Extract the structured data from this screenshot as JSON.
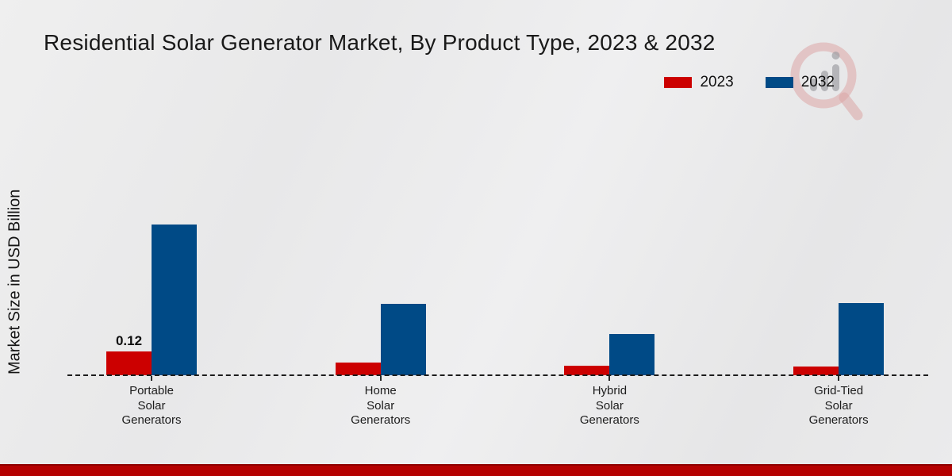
{
  "page": {
    "background_color": "#eaeaeb",
    "footer_bar_color": "#b50101",
    "watermark_icon": "magnifier-bar-chart-watermark"
  },
  "chart_data": {
    "type": "bar",
    "title": "Residential Solar Generator Market, By Product Type, 2023 & 2032",
    "xlabel": "",
    "ylabel": "Market Size in USD Billion",
    "unit": "USD Billion",
    "grid": false,
    "legend_position": "top-right",
    "baseline_style": "dashed-zero-line",
    "y_ticks_visible": false,
    "ylim": [
      0,
      0.8
    ],
    "categories": [
      "Portable Solar Generators",
      "Home Solar Generators",
      "Hybrid Solar Generators",
      "Grid-Tied Solar Generators"
    ],
    "category_lines": [
      [
        "Portable",
        "Solar",
        "Generators"
      ],
      [
        "Home",
        "Solar",
        "Generators"
      ],
      [
        "Hybrid",
        "Solar",
        "Generators"
      ],
      [
        "Grid-Tied",
        "Solar",
        "Generators"
      ]
    ],
    "series": [
      {
        "name": "2023",
        "color": "#cc0000",
        "values": [
          0.12,
          0.065,
          0.05,
          0.045
        ],
        "labels": [
          "0.12",
          "",
          "",
          ""
        ]
      },
      {
        "name": "2032",
        "color": "#004a86",
        "values": [
          0.76,
          0.36,
          0.21,
          0.365
        ],
        "labels": [
          "",
          "",
          "",
          ""
        ]
      }
    ]
  }
}
